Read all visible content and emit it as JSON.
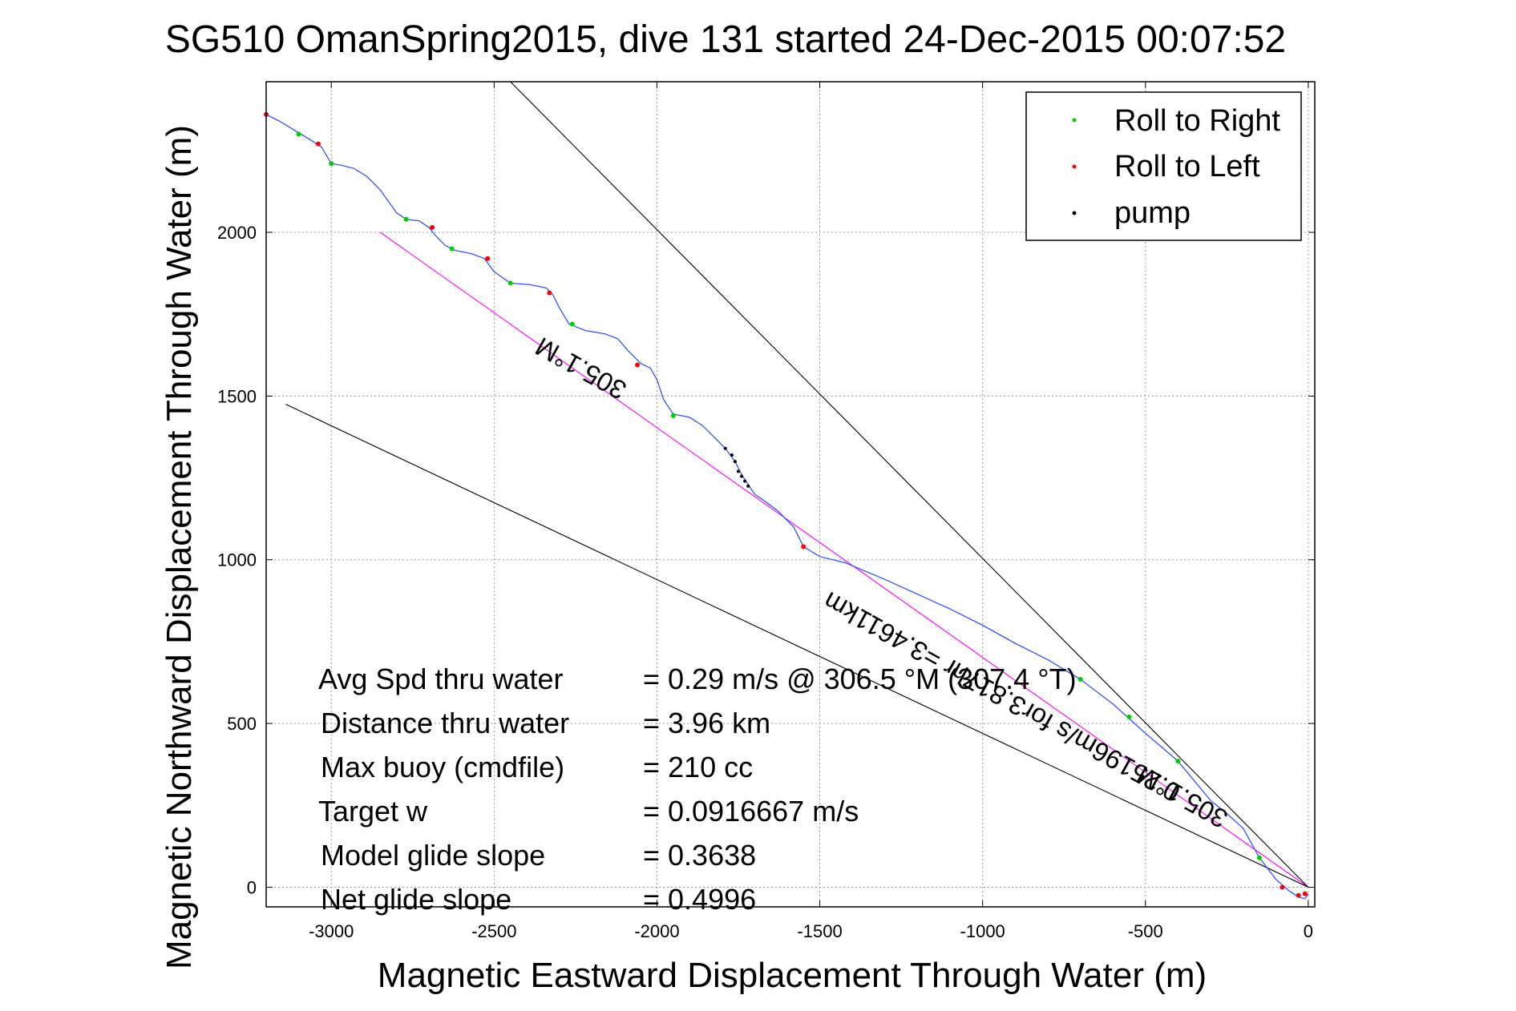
{
  "figure": {
    "title": "SG510 OmanSpring2015, dive 131 started 24-Dec-2015 00:07:52",
    "xlabel": "Magnetic Eastward Displacement Through Water (m)",
    "ylabel": "Magnetic Northward Displacement Through Water (m)"
  },
  "legend": {
    "items": [
      {
        "label": "Roll to Right",
        "color": "#00cc00"
      },
      {
        "label": "Roll to Left",
        "color": "#ff0000"
      },
      {
        "label": "pump",
        "color": "#000000"
      }
    ]
  },
  "annotations": {
    "heading_upper": "305.1°M",
    "speed_center": "0.25196m/s for3.817hr =3.4611km",
    "heading_lower": "305.1°M"
  },
  "stats": [
    {
      "label": "Avg Spd thru water",
      "value": "=  0.29 m/s @ 306.5 °M (307.4 °T)"
    },
    {
      "label": "Distance thru water",
      "value": "=  3.96 km"
    },
    {
      "label": "Max buoy (cmdfile)",
      "value": "= 210 cc"
    },
    {
      "label": "Target w",
      "value": "= 0.0916667 m/s"
    },
    {
      "label": "Model glide slope",
      "value": "= 0.3638"
    },
    {
      "label": "Net glide slope",
      "value": "= 0.4996"
    }
  ],
  "chart_data": {
    "type": "line",
    "title": "SG510 OmanSpring2015, dive 131 started 24-Dec-2015 00:07:52",
    "xlabel": "Magnetic Eastward Displacement Through Water (m)",
    "ylabel": "Magnetic Northward Displacement Through Water (m)",
    "xlim": [
      -3200,
      20
    ],
    "ylim": [
      -60,
      2460
    ],
    "xticks": [
      -3000,
      -2500,
      -2000,
      -1500,
      -1000,
      -500,
      0
    ],
    "yticks": [
      0,
      500,
      1000,
      1500,
      2000
    ],
    "grid": true,
    "legend_position": "top-right",
    "series": [
      {
        "name": "track",
        "color": "#3355ff",
        "points": [
          [
            -3200,
            2360
          ],
          [
            -3160,
            2340
          ],
          [
            -3110,
            2310
          ],
          [
            -3060,
            2280
          ],
          [
            -3030,
            2260
          ],
          [
            -3000,
            2210
          ],
          [
            -2970,
            2205
          ],
          [
            -2930,
            2195
          ],
          [
            -2890,
            2170
          ],
          [
            -2850,
            2130
          ],
          [
            -2800,
            2060
          ],
          [
            -2770,
            2040
          ],
          [
            -2730,
            2035
          ],
          [
            -2700,
            2015
          ],
          [
            -2680,
            1990
          ],
          [
            -2650,
            1960
          ],
          [
            -2620,
            1945
          ],
          [
            -2570,
            1935
          ],
          [
            -2530,
            1920
          ],
          [
            -2500,
            1880
          ],
          [
            -2450,
            1845
          ],
          [
            -2390,
            1840
          ],
          [
            -2340,
            1830
          ],
          [
            -2320,
            1810
          ],
          [
            -2300,
            1770
          ],
          [
            -2270,
            1720
          ],
          [
            -2220,
            1700
          ],
          [
            -2160,
            1690
          ],
          [
            -2120,
            1675
          ],
          [
            -2090,
            1640
          ],
          [
            -2050,
            1600
          ],
          [
            -2020,
            1585
          ],
          [
            -2000,
            1550
          ],
          [
            -1980,
            1490
          ],
          [
            -1950,
            1445
          ],
          [
            -1900,
            1435
          ],
          [
            -1860,
            1410
          ],
          [
            -1820,
            1370
          ],
          [
            -1790,
            1340
          ],
          [
            -1760,
            1300
          ],
          [
            -1740,
            1260
          ],
          [
            -1720,
            1230
          ],
          [
            -1700,
            1200
          ],
          [
            -1670,
            1180
          ],
          [
            -1630,
            1150
          ],
          [
            -1580,
            1100
          ],
          [
            -1550,
            1040
          ],
          [
            -1500,
            1010
          ],
          [
            -1420,
            990
          ],
          [
            -1300,
            940
          ],
          [
            -1200,
            895
          ],
          [
            -1100,
            850
          ],
          [
            -1000,
            800
          ],
          [
            -900,
            745
          ],
          [
            -800,
            695
          ],
          [
            -700,
            635
          ],
          [
            -600,
            560
          ],
          [
            -500,
            470
          ],
          [
            -400,
            385
          ],
          [
            -300,
            265
          ],
          [
            -250,
            225
          ],
          [
            -200,
            180
          ],
          [
            -150,
            90
          ],
          [
            -100,
            25
          ],
          [
            -60,
            -10
          ],
          [
            -30,
            -30
          ],
          [
            -10,
            -35
          ],
          [
            0,
            -20
          ]
        ]
      },
      {
        "name": "model",
        "color": "#ff00ff",
        "points": [
          [
            -2850,
            2000
          ],
          [
            0,
            0
          ]
        ]
      },
      {
        "name": "bound_upper",
        "color": "#000000",
        "points": [
          [
            -2450,
            2460
          ],
          [
            0,
            0
          ]
        ]
      },
      {
        "name": "bound_lower",
        "color": "#000000",
        "points": [
          [
            -3140,
            1475
          ],
          [
            0,
            0
          ]
        ]
      },
      {
        "name": "Roll to Right",
        "color": "#00cc00",
        "points": [
          [
            -3100,
            2300
          ],
          [
            -3000,
            2210
          ],
          [
            -2770,
            2040
          ],
          [
            -2630,
            1950
          ],
          [
            -2450,
            1845
          ],
          [
            -2260,
            1720
          ],
          [
            -1950,
            1440
          ],
          [
            -700,
            635
          ],
          [
            -550,
            520
          ],
          [
            -400,
            385
          ],
          [
            -150,
            90
          ]
        ]
      },
      {
        "name": "Roll to Left",
        "color": "#ff0000",
        "points": [
          [
            -3200,
            2360
          ],
          [
            -3040,
            2270
          ],
          [
            -2690,
            2015
          ],
          [
            -2520,
            1920
          ],
          [
            -2330,
            1815
          ],
          [
            -2060,
            1595
          ],
          [
            -1550,
            1040
          ],
          [
            -80,
            0
          ],
          [
            -30,
            -25
          ],
          [
            -10,
            -20
          ]
        ]
      },
      {
        "name": "pump",
        "color": "#000000",
        "points": [
          [
            -1790,
            1340
          ],
          [
            -1770,
            1320
          ],
          [
            -1760,
            1300
          ],
          [
            -1750,
            1270
          ],
          [
            -1740,
            1255
          ],
          [
            -1730,
            1240
          ],
          [
            -1720,
            1225
          ]
        ]
      }
    ]
  }
}
